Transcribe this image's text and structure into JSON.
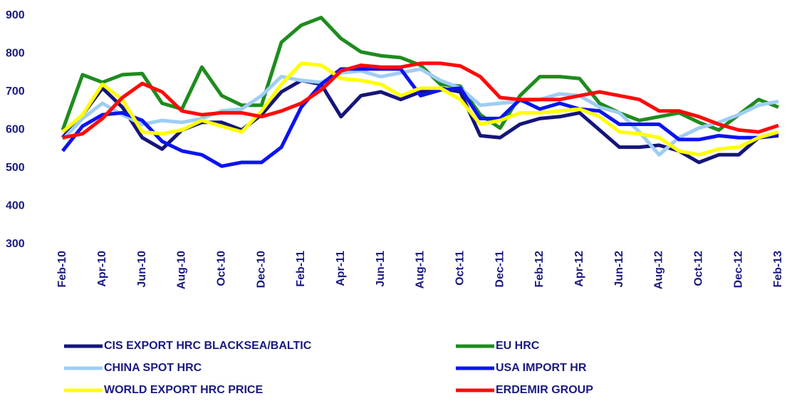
{
  "chart_data": {
    "type": "line",
    "categories": [
      "Feb-10",
      null,
      "Apr-10",
      null,
      "Jun-10",
      null,
      "Aug-10",
      null,
      "Oct-10",
      null,
      "Dec-10",
      null,
      "Feb-11",
      null,
      "Apr-11",
      null,
      "Jun-11",
      null,
      "Aug-11",
      null,
      "Oct-11",
      null,
      "Dec-11",
      null,
      "Feb-12",
      null,
      "Apr-12",
      null,
      "Jun-12",
      null,
      "Aug-12",
      null,
      "Oct-12",
      null,
      "Dec-12",
      null,
      "Feb-13"
    ],
    "series": [
      {
        "name": "CIS EXPORT HRC BLACKSEA/BALTIC",
        "color": "#15157a",
        "values": [
          580,
          640,
          710,
          660,
          580,
          550,
          600,
          620,
          620,
          600,
          640,
          700,
          730,
          720,
          635,
          690,
          700,
          680,
          700,
          710,
          700,
          585,
          580,
          615,
          630,
          635,
          645,
          600,
          555,
          555,
          560,
          545,
          515,
          535,
          535,
          580,
          585
        ]
      },
      {
        "name": "EU HRC",
        "color": "#1e8c1e",
        "values": [
          600,
          745,
          725,
          745,
          748,
          670,
          655,
          765,
          690,
          665,
          665,
          830,
          875,
          895,
          840,
          805,
          795,
          790,
          770,
          720,
          715,
          640,
          605,
          690,
          740,
          740,
          735,
          670,
          645,
          625,
          635,
          645,
          620,
          600,
          640,
          680,
          660
        ]
      },
      {
        "name": "CHINA SPOT HRC",
        "color": "#9fcdf5",
        "values": [
          575,
          630,
          670,
          640,
          615,
          625,
          620,
          630,
          650,
          655,
          690,
          740,
          730,
          725,
          750,
          755,
          740,
          750,
          760,
          730,
          710,
          665,
          670,
          675,
          680,
          695,
          690,
          660,
          645,
          595,
          535,
          580,
          605,
          620,
          640,
          665,
          675
        ]
      },
      {
        "name": "USA IMPORT HR",
        "color": "#0a14f0",
        "values": [
          545,
          610,
          640,
          645,
          625,
          570,
          545,
          535,
          505,
          515,
          515,
          555,
          660,
          720,
          760,
          760,
          760,
          760,
          690,
          705,
          710,
          630,
          630,
          680,
          655,
          670,
          655,
          650,
          615,
          615,
          615,
          575,
          575,
          585,
          580,
          580,
          590
        ]
      },
      {
        "name": "WORLD EXPORT HRC PRICE",
        "color": "#ffff00",
        "values": [
          595,
          640,
          720,
          680,
          595,
          590,
          600,
          625,
          610,
          595,
          650,
          720,
          775,
          770,
          735,
          730,
          720,
          690,
          710,
          710,
          680,
          615,
          625,
          645,
          645,
          650,
          655,
          635,
          595,
          590,
          580,
          545,
          535,
          550,
          555,
          580,
          595
        ]
      },
      {
        "name": "ERDEMIR GROUP",
        "color": "#ff0a0a",
        "values": [
          580,
          590,
          630,
          685,
          722,
          700,
          650,
          640,
          645,
          645,
          635,
          650,
          670,
          705,
          755,
          770,
          765,
          765,
          775,
          775,
          768,
          740,
          685,
          680,
          680,
          680,
          690,
          700,
          690,
          680,
          650,
          650,
          635,
          615,
          600,
          595,
          612
        ]
      }
    ],
    "ylim": [
      300,
      900
    ],
    "yticks": [
      300,
      400,
      500,
      600,
      700,
      800,
      900
    ],
    "grid": false,
    "legend": "bottom"
  }
}
